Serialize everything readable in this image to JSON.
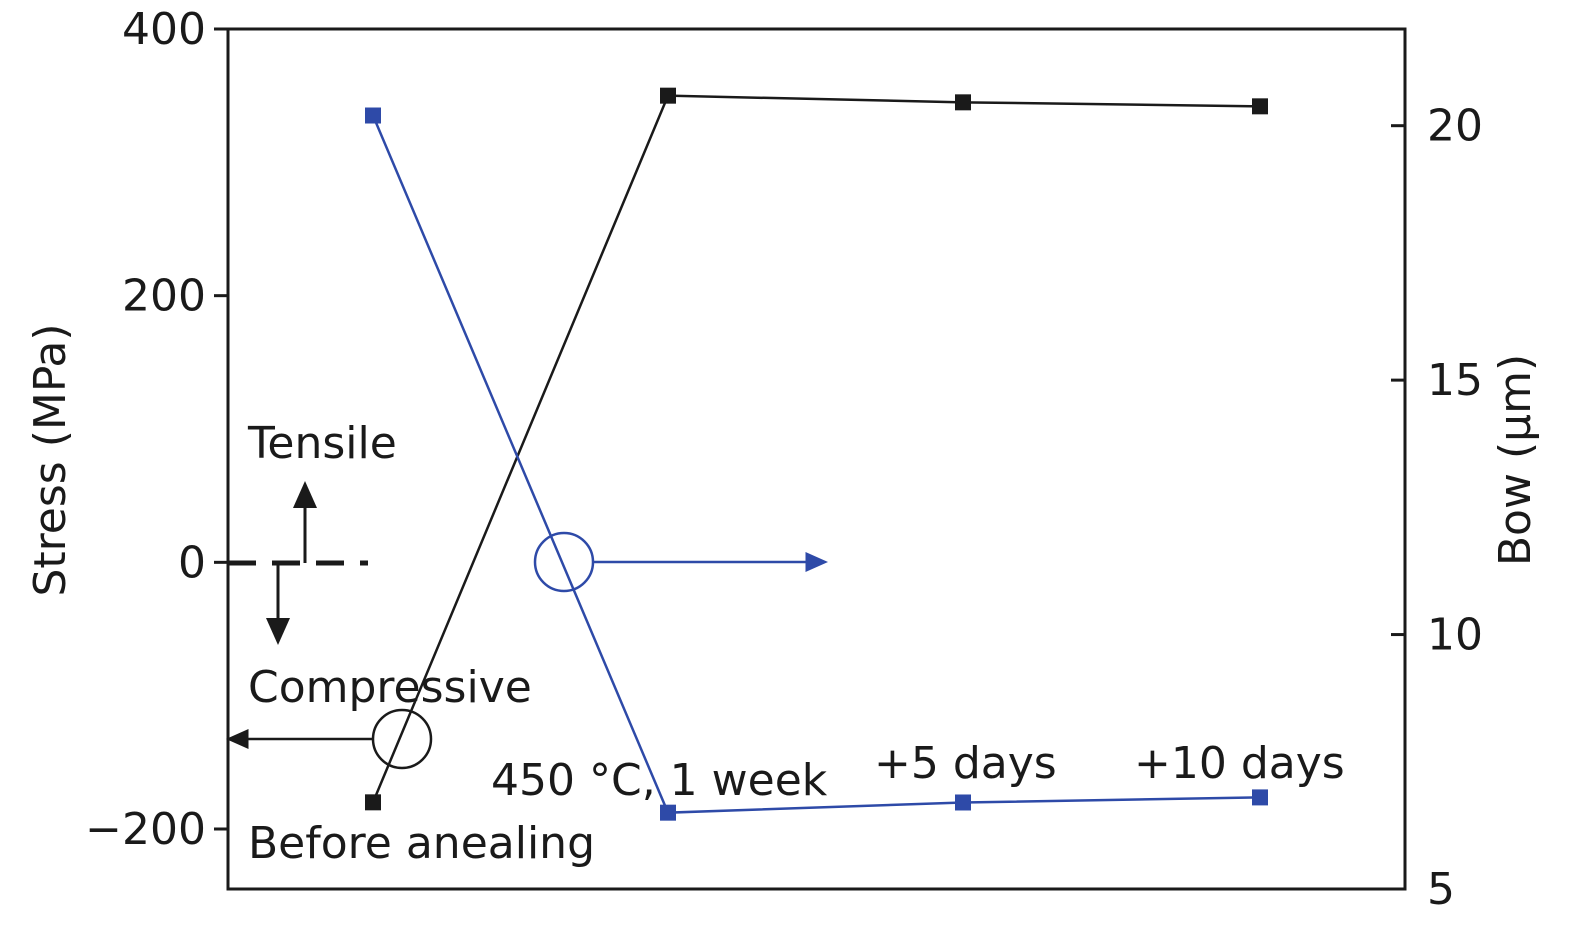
{
  "chart_data": {
    "type": "line",
    "categories": [
      "Before anealing",
      "450 °C, 1 week",
      "+5 days",
      "+10 days"
    ],
    "series": [
      {
        "axis": "left",
        "color": "#1a1a1a",
        "values": [
          -180,
          350,
          345,
          342
        ]
      },
      {
        "axis": "right",
        "color": "#2e4aa8",
        "values": [
          20.2,
          6.5,
          6.7,
          6.8
        ]
      }
    ],
    "y_left": {
      "label": "Stress (MPa)",
      "ylim": [
        -245,
        400
      ],
      "ticks": [
        400,
        200,
        0,
        -200
      ],
      "tick_labels": [
        "400",
        "200",
        "0",
        "−200"
      ]
    },
    "y_right": {
      "label": "Bow (μm)",
      "ylim": [
        5,
        21.9
      ],
      "ticks": [
        20,
        15,
        10,
        5
      ],
      "tick_labels": [
        "20",
        "15",
        "10",
        "5"
      ]
    },
    "grid": false,
    "annotations": {
      "tensile": "Tensile",
      "compressive": "Compressive",
      "before": "Before anealing",
      "anneal": "450 °C, 1 week",
      "plus5": "+5 days",
      "plus10": "+10 days"
    }
  }
}
